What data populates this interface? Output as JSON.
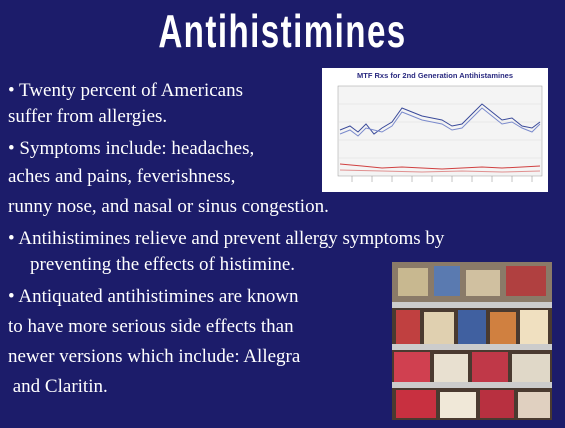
{
  "slide": {
    "title": "Antihistimines",
    "lines": [
      "• Twenty percent of Americans",
      "suffer from allergies.",
      "• Symptoms include: headaches,",
      "aches and pains, feverishness,",
      "runny nose, and nasal or sinus congestion.",
      "• Antihistimines relieve and prevent allergy symptoms by",
      "preventing the effects of histimine.",
      "• Antiquated antihistimines are known",
      "to have more serious side effects than",
      "newer versions which include: Allegra",
      " and Claritin."
    ],
    "chart_image": {
      "title": "MTF Rxs for 2nd Generation Antihistamines"
    }
  }
}
